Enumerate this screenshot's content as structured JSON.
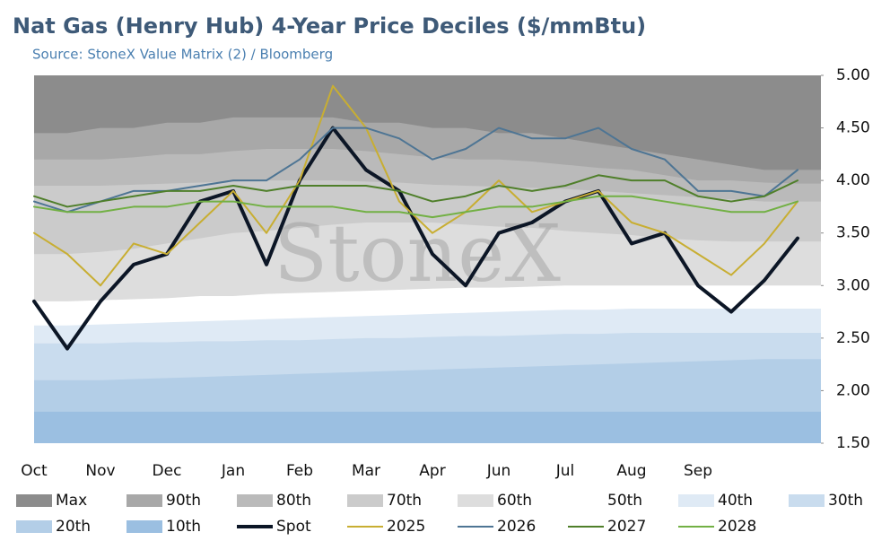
{
  "chart_data": {
    "type": "line",
    "title": "Nat Gas (Henry Hub) 4-Year Price Deciles ($/mmBtu)",
    "subtitle": "Source: StoneX Value Matrix (2) / Bloomberg",
    "watermark": "StoneX",
    "categories": [
      "Oct",
      null,
      "Nov",
      null,
      "Dec",
      null,
      "Jan",
      null,
      "Feb",
      null,
      "Mar",
      null,
      "Apr",
      null,
      "Jun",
      null,
      "Jul",
      null,
      "Aug",
      null,
      "Sep",
      null,
      null,
      null
    ],
    "ylim": [
      1.5,
      5
    ],
    "yticks": [
      {
        "value": 1.5,
        "label": "1.50"
      },
      {
        "value": 2,
        "label": "2.00"
      },
      {
        "value": 2.5,
        "label": "2.50"
      },
      {
        "value": 3,
        "label": "3.00"
      },
      {
        "value": 3.5,
        "label": "3.50"
      },
      {
        "value": 4,
        "label": "4.00"
      },
      {
        "value": 4.5,
        "label": "4.50"
      },
      {
        "value": 5,
        "label": "5.00"
      }
    ],
    "series": [
      {
        "name": "Max",
        "type": "area",
        "color": "#8c8c8c",
        "values": [
          5,
          5,
          5,
          5,
          5,
          5,
          5,
          5,
          5,
          5,
          5,
          5,
          5,
          5,
          5,
          5,
          5,
          5,
          5,
          5,
          5,
          5,
          5,
          5
        ]
      },
      {
        "name": "90th",
        "type": "area",
        "color": "#a8a8a8",
        "values": [
          4.45,
          4.45,
          4.5,
          4.5,
          4.55,
          4.55,
          4.6,
          4.6,
          4.6,
          4.6,
          4.55,
          4.55,
          4.5,
          4.5,
          4.45,
          4.45,
          4.4,
          4.35,
          4.3,
          4.25,
          4.2,
          4.15,
          4.1,
          4.1
        ]
      },
      {
        "name": "80th",
        "type": "area",
        "color": "#bababa",
        "values": [
          4.2,
          4.2,
          4.2,
          4.22,
          4.25,
          4.25,
          4.28,
          4.3,
          4.3,
          4.3,
          4.28,
          4.25,
          4.22,
          4.2,
          4.2,
          4.18,
          4.15,
          4.12,
          4.1,
          4.05,
          4.0,
          4.0,
          3.98,
          3.97
        ]
      },
      {
        "name": "70th",
        "type": "area",
        "color": "#cbcbcb",
        "values": [
          3.95,
          3.95,
          3.95,
          3.96,
          3.97,
          3.98,
          3.99,
          4.0,
          4.0,
          4.0,
          3.99,
          3.98,
          3.96,
          3.95,
          3.94,
          3.93,
          3.92,
          3.9,
          3.88,
          3.86,
          3.84,
          3.82,
          3.8,
          3.8
        ]
      },
      {
        "name": "60th",
        "type": "area",
        "color": "#dddddd",
        "values": [
          3.3,
          3.3,
          3.32,
          3.35,
          3.4,
          3.45,
          3.5,
          3.52,
          3.55,
          3.58,
          3.6,
          3.6,
          3.6,
          3.58,
          3.56,
          3.55,
          3.52,
          3.5,
          3.48,
          3.45,
          3.43,
          3.42,
          3.42,
          3.42
        ]
      },
      {
        "name": "50th",
        "type": "area",
        "color": "#ffffff",
        "values": [
          2.85,
          2.85,
          2.86,
          2.87,
          2.88,
          2.9,
          2.9,
          2.92,
          2.93,
          2.94,
          2.95,
          2.96,
          2.97,
          2.98,
          2.98,
          2.99,
          3.0,
          3.0,
          3.0,
          3.0,
          3.0,
          3.0,
          3.0,
          3.0
        ]
      },
      {
        "name": "40th",
        "type": "area",
        "color": "#dfeaf5",
        "values": [
          2.62,
          2.62,
          2.63,
          2.64,
          2.65,
          2.66,
          2.67,
          2.68,
          2.69,
          2.7,
          2.71,
          2.72,
          2.73,
          2.74,
          2.75,
          2.76,
          2.77,
          2.77,
          2.78,
          2.78,
          2.78,
          2.78,
          2.78,
          2.78
        ]
      },
      {
        "name": "30th",
        "type": "area",
        "color": "#c9dcee",
        "values": [
          2.45,
          2.45,
          2.45,
          2.46,
          2.46,
          2.47,
          2.47,
          2.48,
          2.48,
          2.49,
          2.5,
          2.5,
          2.51,
          2.52,
          2.52,
          2.53,
          2.54,
          2.54,
          2.55,
          2.55,
          2.55,
          2.55,
          2.55,
          2.55
        ]
      },
      {
        "name": "20th",
        "type": "area",
        "color": "#b3cee7",
        "values": [
          2.1,
          2.1,
          2.1,
          2.11,
          2.12,
          2.13,
          2.14,
          2.15,
          2.16,
          2.17,
          2.18,
          2.19,
          2.2,
          2.21,
          2.22,
          2.23,
          2.24,
          2.25,
          2.26,
          2.27,
          2.28,
          2.29,
          2.3,
          2.3
        ]
      },
      {
        "name": "10th",
        "type": "area",
        "color": "#9bbfe1",
        "values": [
          1.8,
          1.8,
          1.8,
          1.8,
          1.8,
          1.8,
          1.8,
          1.8,
          1.8,
          1.8,
          1.8,
          1.8,
          1.8,
          1.8,
          1.8,
          1.8,
          1.8,
          1.8,
          1.8,
          1.8,
          1.8,
          1.8,
          1.8,
          1.8
        ]
      },
      {
        "name": "Spot",
        "type": "line",
        "color": "#0c1626",
        "line_width": 4,
        "values": [
          2.85,
          2.4,
          2.85,
          3.2,
          3.3,
          3.8,
          3.9,
          3.2,
          4.0,
          4.5,
          4.1,
          3.9,
          3.3,
          3.0,
          3.5,
          3.6,
          3.8,
          3.9,
          3.4,
          3.5,
          3.0,
          2.75,
          3.05,
          3.45
        ]
      },
      {
        "name": "2025",
        "type": "line",
        "color": "#c8ae32",
        "line_width": 2,
        "values": [
          3.5,
          3.3,
          3.0,
          3.4,
          3.3,
          3.6,
          3.9,
          3.5,
          4.0,
          4.9,
          4.5,
          3.8,
          3.5,
          3.7,
          4.0,
          3.7,
          3.8,
          3.9,
          3.6,
          3.5,
          3.3,
          3.1,
          3.4,
          3.8
        ]
      },
      {
        "name": "2026",
        "type": "line",
        "color": "#4e7594",
        "line_width": 2,
        "values": [
          3.8,
          3.7,
          3.8,
          3.9,
          3.9,
          3.95,
          4.0,
          4.0,
          4.2,
          4.5,
          4.5,
          4.4,
          4.2,
          4.3,
          4.5,
          4.4,
          4.4,
          4.5,
          4.3,
          4.2,
          3.9,
          3.9,
          3.85,
          4.1
        ]
      },
      {
        "name": "2027",
        "type": "line",
        "color": "#4f7f2a",
        "line_width": 2,
        "values": [
          3.85,
          3.75,
          3.8,
          3.85,
          3.9,
          3.9,
          3.95,
          3.9,
          3.95,
          3.95,
          3.95,
          3.9,
          3.8,
          3.85,
          3.95,
          3.9,
          3.95,
          4.05,
          4.0,
          4.0,
          3.85,
          3.8,
          3.85,
          4.0
        ]
      },
      {
        "name": "2028",
        "type": "line",
        "color": "#72b044",
        "line_width": 2,
        "values": [
          3.75,
          3.7,
          3.7,
          3.75,
          3.75,
          3.8,
          3.8,
          3.75,
          3.75,
          3.75,
          3.7,
          3.7,
          3.65,
          3.7,
          3.75,
          3.75,
          3.8,
          3.85,
          3.85,
          3.8,
          3.75,
          3.7,
          3.7,
          3.8
        ]
      }
    ]
  }
}
